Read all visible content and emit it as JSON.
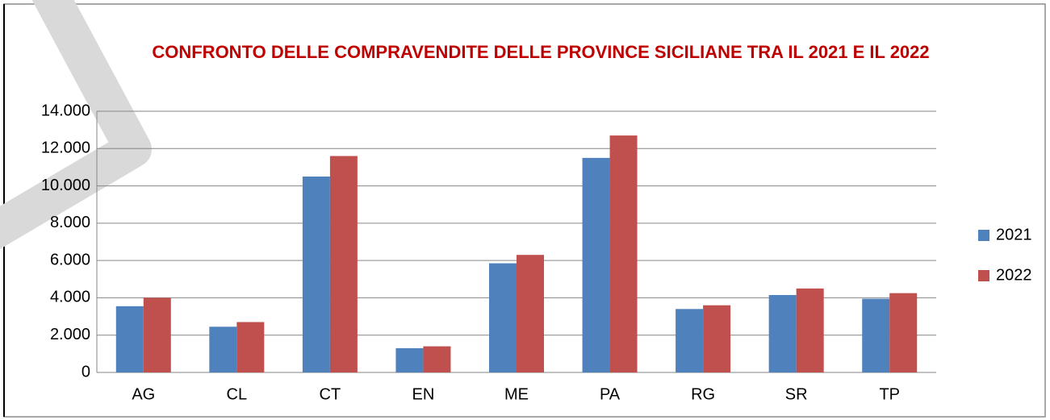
{
  "chart_data": {
    "type": "bar",
    "title": "CONFRONTO DELLE COMPRAVENDITE DELLE PROVINCE SICILIANE TRA IL 2021 E IL 2022",
    "categories": [
      "AG",
      "CL",
      "CT",
      "EN",
      "ME",
      "PA",
      "RG",
      "SR",
      "TP"
    ],
    "series": [
      {
        "name": "2021",
        "color": "#4f81bd",
        "values": [
          3550,
          2450,
          10500,
          1300,
          5850,
          11500,
          3400,
          4150,
          3950
        ]
      },
      {
        "name": "2022",
        "color": "#c0504d",
        "values": [
          4000,
          2700,
          11600,
          1400,
          6300,
          12700,
          3600,
          4500,
          4250
        ]
      }
    ],
    "ylim": [
      0,
      14000
    ],
    "yticks": [
      0,
      {
        "value": 2000,
        "label": "2.000"
      },
      {
        "value": 4000,
        "label": "4.000"
      },
      {
        "value": 6000,
        "label": "6.000"
      },
      {
        "value": 8000,
        "label": "8.000"
      },
      {
        "value": 10000,
        "label": "10.000"
      },
      {
        "value": 12000,
        "label": "12.000"
      },
      {
        "value": 14000,
        "label": "14.000"
      }
    ],
    "grid": true,
    "legend": "right"
  }
}
